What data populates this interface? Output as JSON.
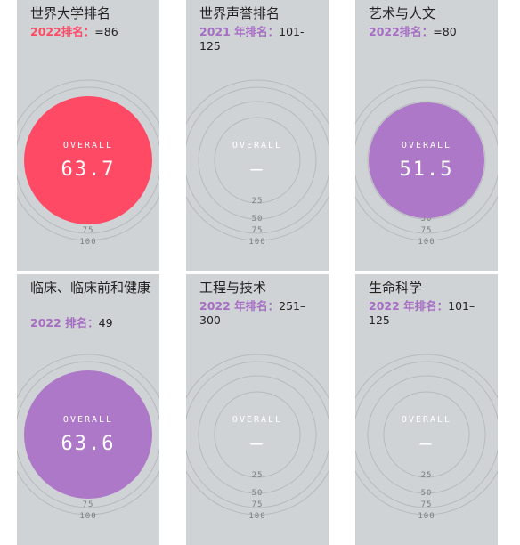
{
  "colors": {
    "card_bg": "#d0d3d6",
    "red": "#ff4a66",
    "purple": "#ad78c8",
    "ring": "#b7babd"
  },
  "dial": {
    "label": "OVERALL",
    "empty_value": "—",
    "ticks": [
      "25",
      "50",
      "75",
      "100"
    ]
  },
  "cards": [
    {
      "title": "世界大学排名",
      "rank_label": "2022排名：",
      "rank_value": "=86",
      "overall": "63.7",
      "fill": "red",
      "label_color": "red"
    },
    {
      "title": "世界声誉排名",
      "rank_label": "2021 年排名：",
      "rank_value": "101-125",
      "overall": "—",
      "fill": "none",
      "label_color": "purple"
    },
    {
      "title": "艺术与人文",
      "rank_label": "2022排名：",
      "rank_value": "=80",
      "overall": "51.5",
      "fill": "purple",
      "label_color": "purple"
    },
    {
      "title": "临床、临床前和健康",
      "rank_label": "2022 排名：",
      "rank_value": "49",
      "overall": "63.6",
      "fill": "purple",
      "label_color": "purple"
    },
    {
      "title": "工程与技术",
      "rank_label": "2022 年排名：",
      "rank_value": "251–300",
      "overall": "—",
      "fill": "none",
      "label_color": "purple"
    },
    {
      "title": "生命科学",
      "rank_label": "2022 年排名：",
      "rank_value": "101–125",
      "overall": "—",
      "fill": "none",
      "label_color": "purple"
    }
  ]
}
